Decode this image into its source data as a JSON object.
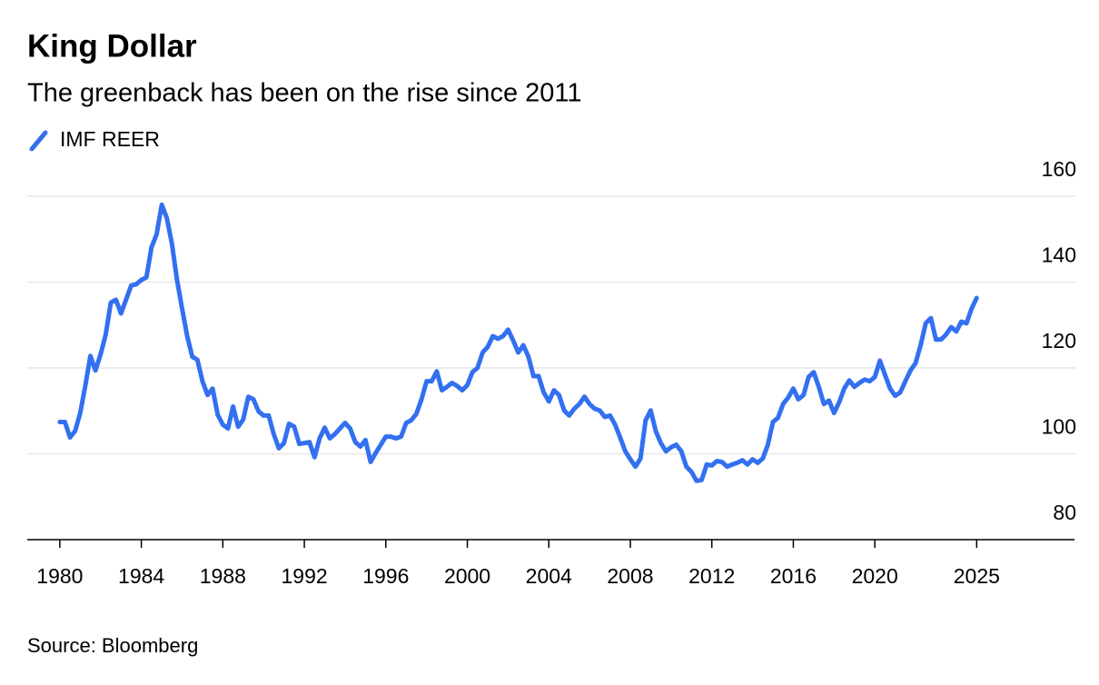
{
  "chart_data": {
    "type": "line",
    "title": "King Dollar",
    "subtitle": "The greenback has been on the rise since 2011",
    "source": "Source: Bloomberg",
    "xlim": [
      1978.4,
      2029.8
    ],
    "xticks": [
      1980,
      1984,
      1988,
      1992,
      1996,
      2000,
      2004,
      2008,
      2012,
      2016,
      2020,
      2025
    ],
    "ylim": [
      80,
      160
    ],
    "yticks": [
      80,
      100,
      120,
      140,
      160
    ],
    "grid": true,
    "x": [
      1980.0,
      1980.25,
      1980.5,
      1980.75,
      1981.0,
      1981.25,
      1981.5,
      1981.75,
      1982.0,
      1982.25,
      1982.5,
      1982.75,
      1983.0,
      1983.25,
      1983.5,
      1983.75,
      1984.0,
      1984.25,
      1984.5,
      1984.75,
      1985.0,
      1985.25,
      1985.5,
      1985.75,
      1986.0,
      1986.25,
      1986.5,
      1986.75,
      1987.0,
      1987.25,
      1987.5,
      1987.75,
      1988.0,
      1988.25,
      1988.5,
      1988.75,
      1989.0,
      1989.25,
      1989.5,
      1989.75,
      1990.0,
      1990.25,
      1990.5,
      1990.75,
      1991.0,
      1991.25,
      1991.5,
      1991.75,
      1992.0,
      1992.25,
      1992.5,
      1992.75,
      1993.0,
      1993.25,
      1993.5,
      1993.75,
      1994.0,
      1994.25,
      1994.5,
      1994.75,
      1995.0,
      1995.25,
      1995.5,
      1995.75,
      1996.0,
      1996.25,
      1996.5,
      1996.75,
      1997.0,
      1997.25,
      1997.5,
      1997.75,
      1998.0,
      1998.25,
      1998.5,
      1998.75,
      1999.0,
      1999.25,
      1999.5,
      1999.75,
      2000.0,
      2000.25,
      2000.5,
      2000.75,
      2001.0,
      2001.25,
      2001.5,
      2001.75,
      2002.0,
      2002.25,
      2002.5,
      2002.75,
      2003.0,
      2003.25,
      2003.5,
      2003.75,
      2004.0,
      2004.25,
      2004.5,
      2004.75,
      2005.0,
      2005.25,
      2005.5,
      2005.75,
      2006.0,
      2006.25,
      2006.5,
      2006.75,
      2007.0,
      2007.25,
      2007.5,
      2007.75,
      2008.0,
      2008.25,
      2008.5,
      2008.75,
      2009.0,
      2009.25,
      2009.5,
      2009.75,
      2010.0,
      2010.25,
      2010.5,
      2010.75,
      2011.0,
      2011.25,
      2011.5,
      2011.75,
      2012.0,
      2012.25,
      2012.5,
      2012.75,
      2013.0,
      2013.25,
      2013.5,
      2013.75,
      2014.0,
      2014.25,
      2014.5,
      2014.75,
      2015.0,
      2015.25,
      2015.5,
      2015.75,
      2016.0,
      2016.25,
      2016.5,
      2016.75,
      2017.0,
      2017.25,
      2017.5,
      2017.75,
      2018.0,
      2018.25,
      2018.5,
      2018.75,
      2019.0,
      2019.25,
      2019.5,
      2019.75,
      2020.0,
      2020.25,
      2020.5,
      2020.75,
      2021.0,
      2021.25,
      2021.5,
      2021.75,
      2022.0,
      2022.25,
      2022.5,
      2022.75,
      2023.0,
      2023.25,
      2023.5,
      2023.75,
      2024.0,
      2024.25,
      2024.5,
      2024.75,
      2025.0
    ],
    "series": [
      {
        "name": "IMF REER",
        "color": "#3370f0",
        "values": [
          107.4,
          107.4,
          103.8,
          105.3,
          109.5,
          115.8,
          122.8,
          119.4,
          123.2,
          127.8,
          135.2,
          135.9,
          132.7,
          135.9,
          139.2,
          139.5,
          140.5,
          141.1,
          148.1,
          151.1,
          158.0,
          154.9,
          148.9,
          140.5,
          133.8,
          127.4,
          122.6,
          121.9,
          116.9,
          113.7,
          115.2,
          109.1,
          106.8,
          105.9,
          111.0,
          106.3,
          108.0,
          113.3,
          112.7,
          109.9,
          108.9,
          108.9,
          104.6,
          101.3,
          102.5,
          107.0,
          106.3,
          102.3,
          102.5,
          102.7,
          99.2,
          103.6,
          106.1,
          103.6,
          104.6,
          105.9,
          107.2,
          105.9,
          102.7,
          101.7,
          103.2,
          98.1,
          100.2,
          102.1,
          104.0,
          104.0,
          103.6,
          104.0,
          107.2,
          107.8,
          109.3,
          112.7,
          116.9,
          116.9,
          119.2,
          114.8,
          115.6,
          116.5,
          115.8,
          114.8,
          116.0,
          119.0,
          120.0,
          123.6,
          124.9,
          127.4,
          126.8,
          127.4,
          128.9,
          126.4,
          123.6,
          125.3,
          122.6,
          118.1,
          118.1,
          114.3,
          112.2,
          114.8,
          113.7,
          110.1,
          108.9,
          110.5,
          111.6,
          113.3,
          111.6,
          110.5,
          110.1,
          108.6,
          108.9,
          106.8,
          103.8,
          100.6,
          98.7,
          97.0,
          98.9,
          107.8,
          110.1,
          105.3,
          102.5,
          100.6,
          101.5,
          102.1,
          100.6,
          97.0,
          95.8,
          93.7,
          93.9,
          97.5,
          97.3,
          98.3,
          98.1,
          97.0,
          97.5,
          97.9,
          98.5,
          97.5,
          98.7,
          97.9,
          98.9,
          102.1,
          107.4,
          108.4,
          111.6,
          113.1,
          115.2,
          112.7,
          113.7,
          117.9,
          119.0,
          115.6,
          111.6,
          112.4,
          109.5,
          112.0,
          115.2,
          117.1,
          115.6,
          116.5,
          117.3,
          116.9,
          117.9,
          121.7,
          118.4,
          115.2,
          113.5,
          114.3,
          116.9,
          119.4,
          121.1,
          125.3,
          130.4,
          131.6,
          126.6,
          126.6,
          127.8,
          129.5,
          128.5,
          130.8,
          130.4,
          133.8,
          136.3
        ]
      }
    ]
  }
}
